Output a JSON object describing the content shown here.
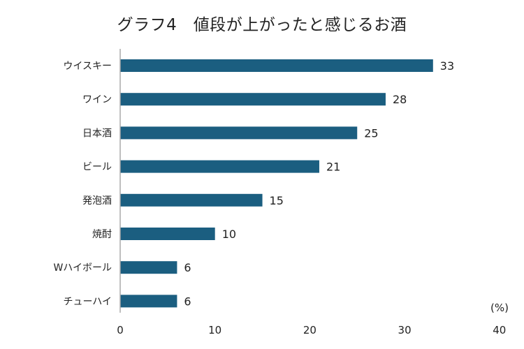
{
  "chart_data": {
    "type": "bar",
    "orientation": "horizontal",
    "title": "グラフ4　値段が上がったと感じるお酒",
    "categories": [
      "ウイスキー",
      "ワイン",
      "日本酒",
      "ビール",
      "発泡酒",
      "焼酎",
      "Wハイボール",
      "チューハイ"
    ],
    "values": [
      33,
      28,
      25,
      21,
      15,
      10,
      6,
      6
    ],
    "xlim": [
      0,
      40
    ],
    "xticks": [
      0,
      10,
      20,
      30,
      40
    ],
    "xtick_labels": [
      "0",
      "10",
      "20",
      "30",
      "40"
    ],
    "unit_label": "(%)",
    "xlabel": "",
    "ylabel": "",
    "grid": false,
    "bar_color": "#1b5e80",
    "axis_color": "#aaaaaa"
  }
}
